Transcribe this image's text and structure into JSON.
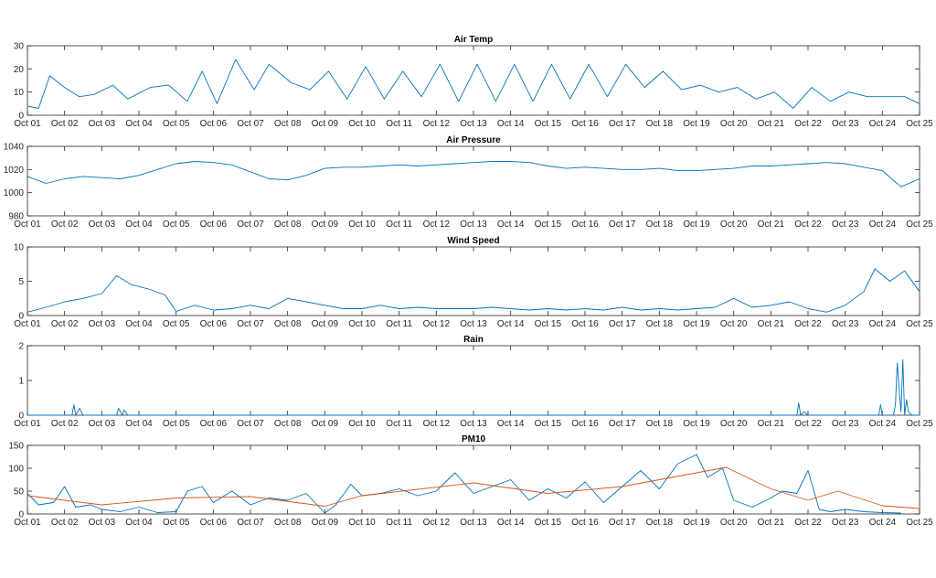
{
  "figure": {
    "x_dates": [
      "Oct 01",
      "Oct 02",
      "Oct 03",
      "Oct 04",
      "Oct 05",
      "Oct 06",
      "Oct 07",
      "Oct 08",
      "Oct 09",
      "Oct 10",
      "Oct 11",
      "Oct 12",
      "Oct 13",
      "Oct 14",
      "Oct 15",
      "Oct 16",
      "Oct 17",
      "Oct 18",
      "Oct 19",
      "Oct 20",
      "Oct 21",
      "Oct 22",
      "Oct 23",
      "Oct 24",
      "Oct 25"
    ],
    "colors": {
      "series1": "#0072BD",
      "series2": "#D95319",
      "axis": "#262626",
      "grid": "#000000"
    }
  },
  "chart_data": [
    {
      "type": "line",
      "title": "Air Temp",
      "xlabel": "",
      "ylabel": "",
      "x_range": [
        "Oct 01",
        "Oct 25"
      ],
      "ylim": [
        0,
        30
      ],
      "yticks": [
        0,
        10,
        20,
        30
      ],
      "grid": false,
      "x_day_offsets": [
        0,
        0.3,
        0.6,
        1,
        1.4,
        1.8,
        2.3,
        2.7,
        3.3,
        3.8,
        4.3,
        4.7,
        5.1,
        5.6,
        6.1,
        6.5,
        7.1,
        7.6,
        8.1,
        8.6,
        9.1,
        9.6,
        10.1,
        10.6,
        11.1,
        11.6,
        12.1,
        12.6,
        13.1,
        13.6,
        14.1,
        14.6,
        15.1,
        15.6,
        16.1,
        16.6,
        17.1,
        17.6,
        18.1,
        18.6,
        19.1,
        19.6,
        20.1,
        20.6,
        21.1,
        21.6,
        22.1,
        22.6,
        23.1,
        23.6,
        24
      ],
      "series": [
        {
          "values": [
            4,
            3,
            17,
            12,
            8,
            9,
            13,
            7,
            12,
            13,
            6,
            19,
            5,
            24,
            11,
            22,
            14,
            11,
            19,
            7,
            21,
            7,
            19,
            8,
            22,
            6,
            22,
            6,
            22,
            6,
            22,
            7,
            22,
            8,
            22,
            12,
            19,
            11,
            13,
            10,
            12,
            7,
            10,
            3,
            12,
            6,
            10,
            8,
            8,
            8,
            5
          ],
          "color": "#0072BD"
        }
      ]
    },
    {
      "type": "line",
      "title": "Air Pressure",
      "xlabel": "",
      "ylabel": "",
      "x_range": [
        "Oct 01",
        "Oct 25"
      ],
      "ylim": [
        980,
        1040
      ],
      "yticks": [
        980,
        1000,
        1020,
        1040
      ],
      "grid": false,
      "x_day_offsets": [
        0,
        0.5,
        1,
        1.5,
        2,
        2.5,
        3,
        3.5,
        4,
        4.5,
        5,
        5.5,
        6,
        6.5,
        7,
        7.5,
        8,
        8.5,
        9,
        9.5,
        10,
        10.5,
        11,
        11.5,
        12,
        12.5,
        13,
        13.5,
        14,
        14.5,
        15,
        15.5,
        16,
        16.5,
        17,
        17.5,
        18,
        18.5,
        19,
        19.5,
        20,
        20.5,
        21,
        21.5,
        22,
        22.5,
        23,
        23.5,
        24
      ],
      "series": [
        {
          "values": [
            1014,
            1008,
            1012,
            1014,
            1013,
            1012,
            1015,
            1020,
            1025,
            1027,
            1026,
            1024,
            1018,
            1012,
            1011,
            1015,
            1021,
            1022,
            1022,
            1023,
            1024,
            1023,
            1024,
            1025,
            1026,
            1027,
            1027,
            1026,
            1023,
            1021,
            1022,
            1021,
            1020,
            1020,
            1021,
            1019,
            1019,
            1020,
            1021,
            1023,
            1023,
            1024,
            1025,
            1026,
            1025,
            1022,
            1019,
            1005,
            1012
          ],
          "color": "#0072BD"
        }
      ]
    },
    {
      "type": "line",
      "title": "Wind Speed",
      "xlabel": "",
      "ylabel": "",
      "x_range": [
        "Oct 01",
        "Oct 25"
      ],
      "ylim": [
        0,
        10
      ],
      "yticks": [
        0,
        5,
        10
      ],
      "grid": false,
      "x_day_offsets": [
        0,
        0.5,
        1,
        1.5,
        2,
        2.4,
        2.8,
        3.3,
        3.7,
        4,
        4.5,
        5,
        5.5,
        6,
        6.5,
        7,
        7.5,
        8,
        8.5,
        9,
        9.5,
        10,
        10.5,
        11,
        11.5,
        12,
        12.5,
        13,
        13.5,
        14,
        14.5,
        15,
        15.5,
        16,
        16.5,
        17,
        17.5,
        18,
        18.5,
        19,
        19.5,
        20,
        20.5,
        21,
        21.5,
        22,
        22.5,
        22.8,
        23.2,
        23.6,
        24
      ],
      "series": [
        {
          "values": [
            0.5,
            1.2,
            2,
            2.5,
            3.2,
            5.8,
            4.5,
            3.8,
            3,
            0.6,
            1.5,
            0.8,
            1,
            1.5,
            1,
            2.5,
            2,
            1.5,
            1,
            1,
            1.5,
            1,
            1.2,
            1,
            1,
            1,
            1.2,
            1,
            0.8,
            1,
            0.8,
            1,
            0.8,
            1.2,
            0.8,
            1,
            0.8,
            1,
            1.2,
            2.5,
            1.2,
            1.5,
            2,
            1,
            0.5,
            1.5,
            3.5,
            6.8,
            5,
            6.5,
            3.5
          ],
          "color": "#0072BD"
        }
      ]
    },
    {
      "type": "line",
      "title": "Rain",
      "xlabel": "",
      "ylabel": "",
      "x_range": [
        "Oct 01",
        "Oct 25"
      ],
      "ylim": [
        0,
        2
      ],
      "yticks": [
        0,
        1,
        2
      ],
      "grid": false,
      "x_day_offsets": [
        0,
        1.2,
        1.25,
        1.3,
        1.4,
        1.5,
        2.4,
        2.45,
        2.55,
        2.6,
        2.7,
        20.7,
        20.75,
        20.8,
        20.9,
        21,
        22.9,
        22.95,
        23,
        23.3,
        23.35,
        23.4,
        23.45,
        23.5,
        23.55,
        23.6,
        23.65,
        23.7,
        23.8,
        24
      ],
      "series": [
        {
          "values": [
            0,
            0,
            0.3,
            0,
            0.2,
            0,
            0,
            0.2,
            0,
            0.15,
            0,
            0,
            0.35,
            0,
            0.1,
            0,
            0,
            0.3,
            0,
            0,
            0.3,
            1.5,
            0.8,
            0.1,
            1.6,
            0,
            0.45,
            0.1,
            0,
            0
          ],
          "color": "#0072BD"
        }
      ]
    },
    {
      "type": "line",
      "title": "PM10",
      "xlabel": "",
      "ylabel": "",
      "x_range": [
        "Oct 01",
        "Oct 25"
      ],
      "ylim": [
        0,
        150
      ],
      "yticks": [
        0,
        50,
        100,
        150
      ],
      "grid": false,
      "series": [
        {
          "x_day_offsets": [
            0,
            0.3,
            0.7,
            1,
            1.3,
            1.7,
            2,
            2.5,
            3,
            3.5,
            4,
            4.3,
            4.7,
            5,
            5.5,
            6,
            6.5,
            7,
            7.5,
            8,
            8.3,
            8.7,
            9,
            9.5,
            10,
            10.5,
            11,
            11.5,
            12,
            12.5,
            13,
            13.5,
            14,
            14.5,
            15,
            15.5,
            16,
            16.5,
            17,
            17.5,
            18,
            18.3,
            18.7,
            19,
            19.5,
            20,
            20.3,
            20.7,
            21,
            21.3,
            21.6,
            22,
            22.5,
            23,
            23.5
          ],
          "values": [
            45,
            20,
            25,
            60,
            15,
            20,
            10,
            5,
            15,
            3,
            5,
            50,
            60,
            25,
            50,
            20,
            35,
            30,
            45,
            2,
            20,
            65,
            40,
            45,
            55,
            40,
            50,
            90,
            45,
            60,
            75,
            30,
            55,
            35,
            70,
            25,
            60,
            95,
            55,
            110,
            130,
            80,
            100,
            30,
            15,
            35,
            50,
            45,
            95,
            10,
            5,
            10,
            5,
            3,
            2
          ],
          "color": "#0072BD"
        },
        {
          "x_day_offsets": [
            0,
            2,
            4,
            6,
            8,
            9,
            12,
            14,
            16,
            18,
            18.8,
            20,
            21,
            21.8,
            23,
            24
          ],
          "values": [
            40,
            20,
            35,
            38,
            17,
            40,
            68,
            45,
            60,
            90,
            102,
            55,
            30,
            50,
            18,
            12
          ],
          "color": "#D95319"
        }
      ]
    }
  ]
}
